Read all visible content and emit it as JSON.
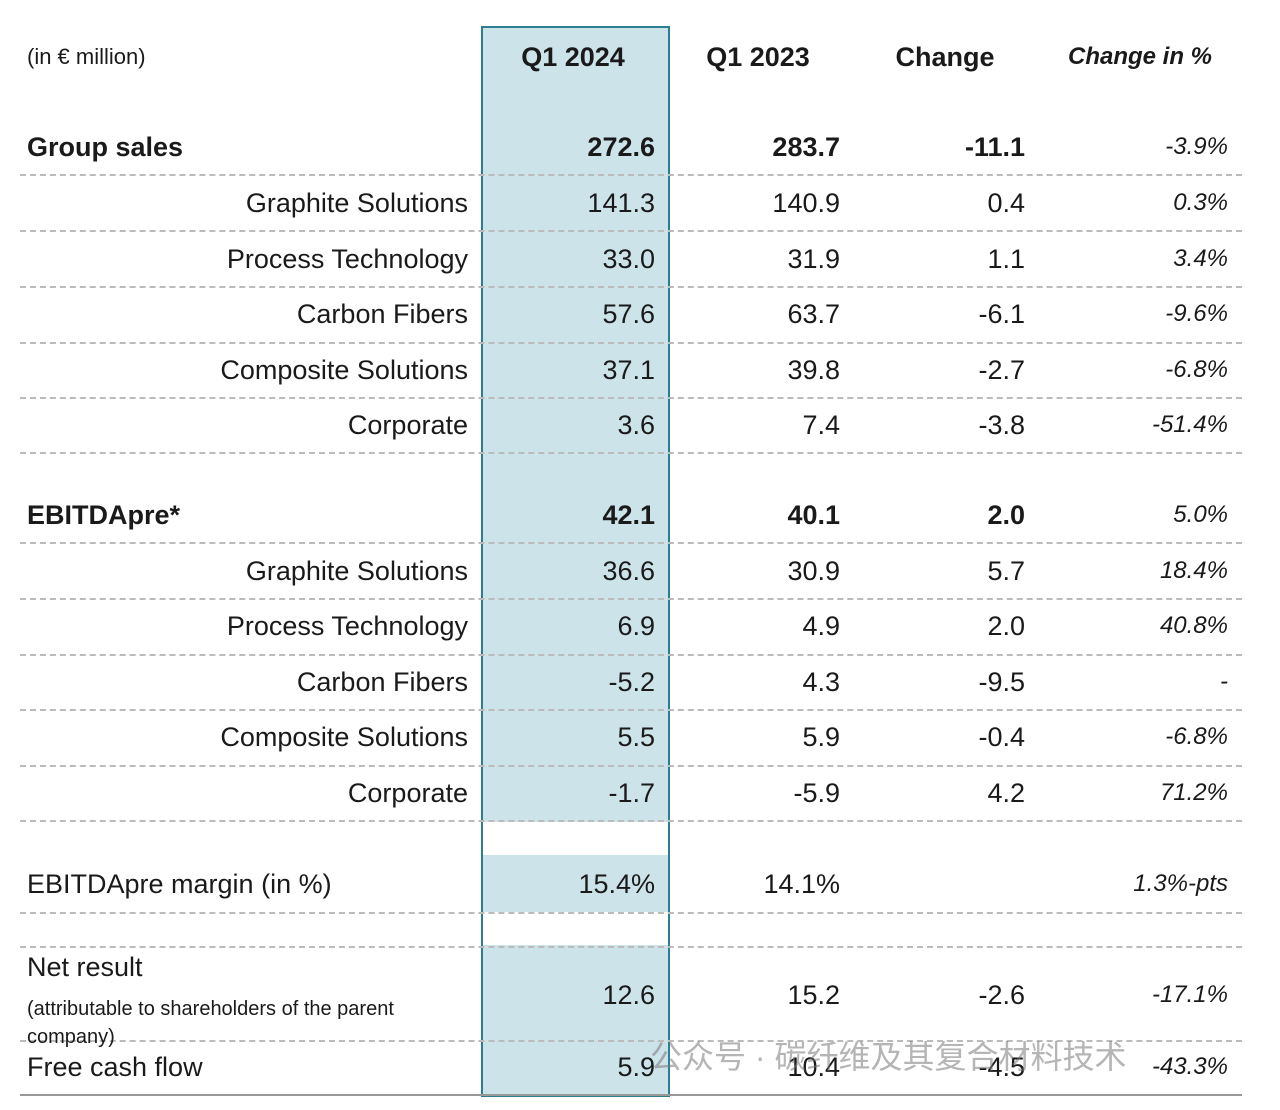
{
  "table": {
    "header": [
      "(in € million)",
      "Q1 2024",
      "Q1 2023",
      "Change",
      "Change in %"
    ],
    "rows": [
      {
        "label": "Group sales",
        "cells": [
          "272.6",
          "283.7",
          "-11.1",
          "-3.9%"
        ]
      },
      {
        "label": "Graphite Solutions",
        "cells": [
          "141.3",
          "140.9",
          "0.4",
          "0.3%"
        ]
      },
      {
        "label": "Process Technology",
        "cells": [
          "33.0",
          "31.9",
          "1.1",
          "3.4%"
        ]
      },
      {
        "label": "Carbon Fibers",
        "cells": [
          "57.6",
          "63.7",
          "-6.1",
          "-9.6%"
        ]
      },
      {
        "label": "Composite Solutions",
        "cells": [
          "37.1",
          "39.8",
          "-2.7",
          "-6.8%"
        ]
      },
      {
        "label": "Corporate",
        "cells": [
          "3.6",
          "7.4",
          "-3.8",
          "-51.4%"
        ]
      },
      {
        "label": "EBITDApre*",
        "cells": [
          "42.1",
          "40.1",
          "2.0",
          "5.0%"
        ]
      },
      {
        "label": "Graphite Solutions",
        "cells": [
          "36.6",
          "30.9",
          "5.7",
          "18.4%"
        ]
      },
      {
        "label": "Process Technology",
        "cells": [
          "6.9",
          "4.9",
          "2.0",
          "40.8%"
        ]
      },
      {
        "label": "Carbon Fibers",
        "cells": [
          "-5.2",
          "4.3",
          "-9.5",
          "-"
        ]
      },
      {
        "label": "Composite Solutions",
        "cells": [
          "5.5",
          "5.9",
          "-0.4",
          "-6.8%"
        ]
      },
      {
        "label": "Corporate",
        "cells": [
          "-1.7",
          "-5.9",
          "4.2",
          "71.2%"
        ]
      },
      {
        "label": "EBITDApre margin (in %)",
        "cells": [
          "15.4%",
          "14.1%",
          null,
          "1.3%-pts"
        ]
      },
      {
        "label": "Net result",
        "note": "(attributable to shareholders of the parent company)",
        "cells": [
          "12.6",
          "15.2",
          "-2.6",
          "-17.1%"
        ]
      },
      {
        "label": "Free cash flow",
        "cells": [
          "5.9",
          "10.4",
          "-4.5",
          "-43.3%"
        ]
      }
    ]
  },
  "watermark": "公众号 · 碳纤维及其复合材料技术"
}
